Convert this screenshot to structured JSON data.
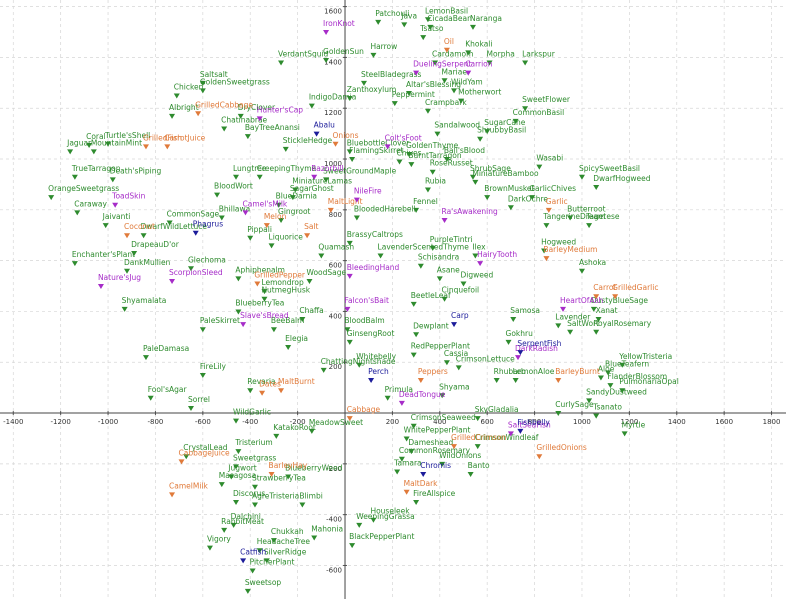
{
  "chart_data": {
    "type": "scatter",
    "xlim": [
      -1456,
      1861
    ],
    "ylim": [
      -732,
      1626
    ],
    "xticks": [
      -1400,
      -1200,
      -1000,
      -800,
      -600,
      -400,
      -200,
      200,
      400,
      600,
      800,
      1000,
      1200,
      1400,
      1600,
      1800
    ],
    "yticks": [
      1600,
      1400,
      1200,
      1000,
      800,
      600,
      400,
      200,
      -200,
      -400,
      -600
    ],
    "grid": true,
    "series": [
      {
        "color": "#2e8b2e",
        "labels": [
          "Patchouli",
          "Java",
          "LemonBasil",
          "CicadaBean",
          "Naranga",
          "Tsatso",
          "Khokali",
          "Harrow",
          "VerdantSquid",
          "GoldenSun",
          "Cardamom",
          "Morpha",
          "Larkspur",
          "Saltsalt",
          "GoldenSweetgrass",
          "Mariae",
          "SteelBladegrass",
          "WildYam",
          "Zanthoxylum",
          "Altar'sBlessing",
          "Peppermint",
          "Chicken",
          "IndigoDamia",
          "Motherwort",
          "Crampbark",
          "SweetFlower",
          "Albright",
          "DryClover",
          "CommonBasil",
          "Chatinabrae",
          "BayTreeAnansi",
          "Sandalwood",
          "SugarCane",
          "ShrubbyBasil",
          "Turtle'sShell",
          "Coral",
          "Jaguar",
          "MountainMint",
          "StickleHedge",
          "BluebottleClover",
          "GoldenThyme",
          "FlamingSkirret",
          "Chives",
          "Ball'sBlood",
          "BurntTarragon",
          "Wasabi",
          "TrueTarragon",
          "Death'sPiping",
          "Lungtree",
          "CreepingThyme",
          "SweetGroundMaple",
          "RoseRusset",
          "ShrubSage",
          "SpicySweetBasil",
          "MiniatureBamboo",
          "DwarfHogweed",
          "OrangeSweetgrass",
          "MiniatureLamas",
          "SagarGhost",
          "BloodWort",
          "Rubia",
          "BrownMusket",
          "GarlicChives",
          "Caraway",
          "BlueDarnia",
          "Fennel",
          "DarkOchre",
          "Butterroot",
          "Bhillawa",
          "Gingroot",
          "BloodedHarebell",
          "TangerineDream",
          "Tagetese",
          "Jaivanti",
          "CommonSage",
          "DwarfWildLettuce",
          "Pippali",
          "BrassyCaltrops",
          "Liquorice",
          "DrapeauD'or",
          "PurpleTintri",
          "LavenderScentedThyme",
          "Ilex",
          "Hogweed",
          "Quamash",
          "Enchanter'sPlant",
          "DankMullien",
          "Schisandra",
          "Ashoka",
          "Glechoma",
          "Asane",
          "Digweed",
          "Aphiphenalm",
          "WoodSage",
          "Shyamalata",
          "Lemondrop",
          "NutmegHusk",
          "BlueberryTea",
          "BeetleLeaf",
          "Cinquefoil",
          "DustyBlueSage",
          "Xanat",
          "RoyalRosemary",
          "PaleSkirret",
          "BeeBalm",
          "Chaffa",
          "BloodBalm",
          "Dewplant",
          "Samosa",
          "Lavender",
          "SaltWort",
          "GinsengRoot",
          "Elegia",
          "Gokhru",
          "RedPepperPlant",
          "PaleDamasa",
          "Whitebelly",
          "ChattingNightshade",
          "Cassia",
          "CrimsonLettuce",
          "YellowTristeria",
          "BlueTeafern",
          "FireLily",
          "Rhubarb",
          "LemonAloe",
          "Aloe",
          "FlanderBlossom",
          "PulmonariaOpal",
          "Revaria",
          "Fool'sAgar",
          "Primula",
          "Shyama",
          "SandyDustweed",
          "Sorrel",
          "CurlySage",
          "SkyGladalia",
          "Tsanato",
          "WildGarlic",
          "MeadowSweet",
          "CrimsonSeaweed",
          "Myrtle",
          "KatakoRoot",
          "WhitePepperPlant",
          "CrimsonWindleaf",
          "Tristerium",
          "Dameshead",
          "CrystalLead",
          "CommonRosemary",
          "WildOnions",
          "Sweetgrass",
          "Tamara",
          "Banto",
          "Jugwort",
          "BlueberryWeed",
          "Masagosa",
          "StrawberryTea",
          "FireAllspice",
          "Discorus",
          "AgreTristeria",
          "Blimbi",
          "Houseleek",
          "WeepingGrassa",
          "Dalchini",
          "RabbitMeat",
          "Chukkah",
          "Mahonia",
          "HeadacheTree",
          "Vigory",
          "BlackPepperPlant",
          "SilverRidge",
          "PitcherPlant",
          "Sweetsop"
        ],
        "x": [
          140,
          250,
          350,
          360,
          540,
          330,
          520,
          120,
          -270,
          -80,
          380,
          610,
          760,
          -600,
          -600,
          420,
          80,
          460,
          20,
          270,
          210,
          -710,
          -140,
          490,
          350,
          760,
          -730,
          -440,
          720,
          -510,
          -410,
          390,
          600,
          570,
          -1000,
          -1080,
          -1160,
          -1060,
          -250,
          20,
          270,
          30,
          230,
          430,
          280,
          820,
          -1140,
          -980,
          -460,
          -360,
          -80,
          370,
          540,
          1000,
          550,
          1060,
          -1240,
          -210,
          -220,
          -540,
          350,
          600,
          790,
          -1130,
          -280,
          300,
          700,
          950,
          -520,
          -270,
          50,
          850,
          1030,
          -1010,
          -740,
          -850,
          -400,
          20,
          -310,
          -890,
          370,
          150,
          550,
          840,
          -100,
          -1140,
          -920,
          320,
          1000,
          -650,
          400,
          500,
          -450,
          -150,
          -930,
          -340,
          -340,
          -450,
          290,
          420,
          1050,
          1070,
          1060,
          -600,
          -300,
          -180,
          10,
          300,
          710,
          900,
          950,
          20,
          -240,
          690,
          290,
          -840,
          60,
          -90,
          430,
          480,
          1170,
          1110,
          -600,
          640,
          720,
          1080,
          1120,
          1170,
          -400,
          -820,
          180,
          410,
          1030,
          -650,
          900,
          560,
          1060,
          -460,
          -140,
          290,
          1180,
          -290,
          260,
          560,
          -450,
          280,
          -670,
          240,
          410,
          -460,
          220,
          530,
          -480,
          -240,
          -520,
          -380,
          300,
          -460,
          -380,
          -180,
          120,
          60,
          -470,
          -510,
          -300,
          -130,
          -360,
          -570,
          30,
          -330,
          -390,
          -410
        ],
        "values": [
          1540,
          1530,
          1550,
          1520,
          1520,
          1480,
          1420,
          1410,
          1380,
          1390,
          1380,
          1380,
          1380,
          1300,
          1270,
          1310,
          1300,
          1270,
          1240,
          1260,
          1220,
          1250,
          1210,
          1230,
          1190,
          1200,
          1170,
          1170,
          1150,
          1120,
          1090,
          1100,
          1110,
          1080,
          1060,
          1055,
          1030,
          1030,
          1040,
          1030,
          1020,
          1000,
          990,
          1000,
          980,
          970,
          930,
          920,
          930,
          930,
          920,
          950,
          930,
          930,
          910,
          890,
          850,
          880,
          850,
          860,
          880,
          850,
          850,
          790,
          820,
          800,
          810,
          770,
          770,
          760,
          770,
          740,
          740,
          740,
          750,
          700,
          690,
          670,
          660,
          630,
          650,
          620,
          620,
          640,
          620,
          590,
          560,
          580,
          560,
          570,
          530,
          510,
          530,
          520,
          410,
          480,
          450,
          400,
          430,
          450,
          410,
          370,
          320,
          330,
          330,
          370,
          330,
          310,
          370,
          345,
          320,
          280,
          260,
          280,
          230,
          220,
          190,
          170,
          200,
          180,
          190,
          160,
          150,
          130,
          130,
          140,
          110,
          90,
          90,
          60,
          60,
          70,
          50,
          20,
          0,
          -20,
          -10,
          -30,
          -70,
          -50,
          -80,
          -90,
          -100,
          -130,
          -150,
          -150,
          -170,
          -180,
          -200,
          -210,
          -230,
          -240,
          -250,
          -250,
          -280,
          -290,
          -350,
          -350,
          -360,
          -360,
          -420,
          -440,
          -440,
          -460,
          -500,
          -490,
          -540,
          -530,
          -520,
          -580,
          -620,
          -700
        ]
      },
      {
        "color": "#e07a3a",
        "labels": [
          "Oil",
          "GrilledCabbage",
          "GrilledFish",
          "CarrotJuice",
          "Onions",
          "MaltLight",
          "Garlic",
          "Melon",
          "Coconut",
          "Salt",
          "BarleyMedium",
          "GrilledPepper",
          "Carrot",
          "GrilledGarlic",
          "Peppers",
          "BarleyBurnt",
          "MaltBurnt",
          "Dates",
          "Cabbage",
          "GrilledCrimson",
          "CabbageJuice",
          "GrilledOnions",
          "BarleyHay",
          "CamelMilk",
          "MaltDark"
        ],
        "x": [
          430,
          -620,
          -840,
          -750,
          -40,
          -60,
          860,
          -330,
          -920,
          -160,
          850,
          -370,
          1060,
          1140,
          320,
          900,
          -270,
          -350,
          20,
          460,
          -690,
          820,
          -310,
          -730,
          260
        ],
        "values": [
          1430,
          1180,
          1050,
          1050,
          1060,
          800,
          800,
          740,
          700,
          700,
          610,
          510,
          460,
          460,
          130,
          130,
          90,
          80,
          -20,
          -130,
          -190,
          -170,
          -240,
          -320,
          -310
        ]
      },
      {
        "color": "#a62cc8",
        "labels": [
          "IronKnot",
          "DuelingSerpent",
          "Carrion",
          "Hunter'sCap",
          "Colt'sFoot",
          "Razorbill",
          "ToadSkin",
          "NileFire",
          "Camel'sMilk",
          "Ra'sAwakening",
          "HairyTooth",
          "BleedingHand",
          "Nature'sJug",
          "ScorpionSleed",
          "Falcon'sBait",
          "HeartOfAsh",
          "Slave'sBread",
          "DarkRadish",
          "DeadTongue",
          "SaltSeaFish"
        ],
        "x": [
          -80,
          300,
          520,
          -360,
          180,
          -130,
          -970,
          50,
          -420,
          420,
          570,
          20,
          -1030,
          -730,
          10,
          920,
          -430,
          730,
          240,
          700
        ],
        "values": [
          1500,
          1340,
          1340,
          1160,
          1050,
          930,
          820,
          840,
          790,
          760,
          590,
          540,
          500,
          520,
          410,
          410,
          350,
          220,
          40,
          -80
        ]
      },
      {
        "color": "#1c1c9a",
        "labels": [
          "Abalu",
          "Phagrus",
          "Carp",
          "SerpentFish",
          "Perch",
          "Fishbelly",
          "Chromis",
          "Catfish"
        ],
        "x": [
          -120,
          -630,
          460,
          740,
          110,
          740,
          330,
          -430
        ],
        "values": [
          1100,
          710,
          350,
          240,
          130,
          -70,
          -240,
          -580
        ]
      }
    ]
  }
}
